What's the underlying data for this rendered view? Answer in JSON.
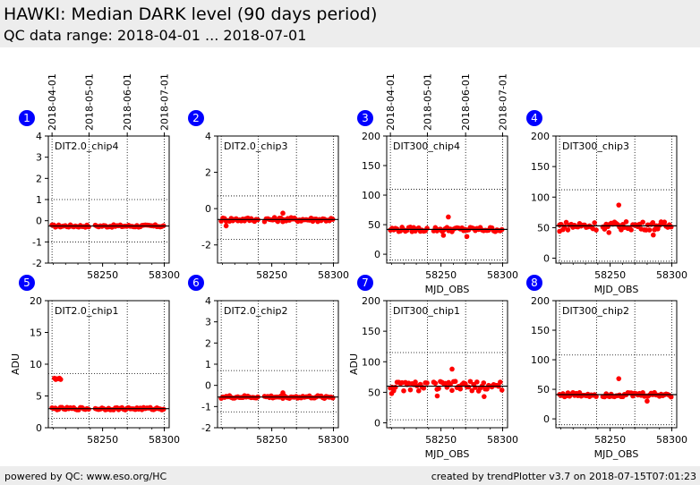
{
  "header": {
    "title": "HAWKI: Median DARK level (90 days period)",
    "subtitle": "QC data range: 2018-04-01 ... 2018-07-01"
  },
  "footer": {
    "left": "powered by QC: www.eso.org/HC",
    "right": "created by trendPlotter v3.7 on 2018-07-15T07:01:23"
  },
  "colors": {
    "points": "#ff0000",
    "reference_line": "#000000",
    "badge": "#0000ff",
    "header_bg": "#ededed"
  },
  "date_ticks": {
    "labels": [
      "2018-04-01",
      "2018-05-01",
      "2018-06-01",
      "2018-07-01"
    ],
    "mjd": [
      58209,
      58239,
      58270,
      58300
    ]
  },
  "chart_data": [
    {
      "type": "scatter",
      "badge": "1",
      "name": "DIT2.0_chip4",
      "xlim": [
        58206,
        58304
      ],
      "ylim": [
        -2,
        4
      ],
      "yticks": [
        -2,
        -1,
        0,
        1,
        2,
        3,
        4
      ],
      "xticks": [
        58250,
        58300
      ],
      "hlines": [
        -1,
        1
      ],
      "ref": -0.25,
      "xlabel": "",
      "ylabel": "",
      "show_date_axis": true,
      "base": -0.25,
      "noise": 0.06,
      "outliers": []
    },
    {
      "type": "scatter",
      "badge": "2",
      "name": "DIT2.0_chip3",
      "xlim": [
        58206,
        58304
      ],
      "ylim": [
        -3,
        4
      ],
      "yticks": [
        -2,
        0,
        2,
        4
      ],
      "xticks": [
        58250,
        58300
      ],
      "hlines": [
        -1.7,
        0.7
      ],
      "ref": -0.6,
      "xlabel": "",
      "ylabel": "",
      "show_date_axis": false,
      "base": -0.6,
      "noise": 0.12,
      "outliers": [
        [
          58213,
          -0.95
        ],
        [
          58259,
          -0.25
        ]
      ]
    },
    {
      "type": "scatter",
      "badge": "3",
      "name": "DIT300_chip4",
      "xlim": [
        58206,
        58304
      ],
      "ylim": [
        -15,
        200
      ],
      "yticks": [
        0,
        50,
        100,
        150,
        200
      ],
      "xticks": [
        58250,
        58300
      ],
      "hlines": [
        -10,
        110
      ],
      "ref": 42,
      "xlabel": "MJD_OBS",
      "ylabel": "",
      "show_date_axis": true,
      "base": 42,
      "noise": 4,
      "outliers": [
        [
          58256,
          63
        ],
        [
          58271,
          30
        ],
        [
          58252,
          32
        ]
      ]
    },
    {
      "type": "scatter",
      "badge": "4",
      "name": "DIT300_chip3",
      "xlim": [
        58206,
        58304
      ],
      "ylim": [
        -8,
        200
      ],
      "yticks": [
        0,
        50,
        100,
        150,
        200
      ],
      "xticks": [
        58250,
        58300
      ],
      "hlines": [
        -5,
        112
      ],
      "ref": 53,
      "xlabel": "MJD_OBS",
      "ylabel": "",
      "show_date_axis": false,
      "base": 53,
      "noise": 7,
      "outliers": [
        [
          58257,
          87
        ],
        [
          58249,
          42
        ],
        [
          58285,
          38
        ],
        [
          58209,
          44
        ]
      ]
    },
    {
      "type": "scatter",
      "badge": "5",
      "name": "DIT2.0_chip1",
      "xlim": [
        58206,
        58304
      ],
      "ylim": [
        0,
        20
      ],
      "yticks": [
        0,
        5,
        10,
        15,
        20
      ],
      "xticks": [
        58250,
        58300
      ],
      "hlines": [
        1.5,
        8.5
      ],
      "ref": 3.0,
      "xlabel": "",
      "ylabel": "ADU",
      "show_date_axis": false,
      "base": 3.0,
      "noise": 0.2,
      "outliers": [
        [
          58211,
          7.8
        ],
        [
          58212,
          7.6
        ],
        [
          58213,
          7.7
        ],
        [
          58214,
          7.7
        ],
        [
          58215,
          7.8
        ],
        [
          58216,
          7.6
        ]
      ]
    },
    {
      "type": "scatter",
      "badge": "6",
      "name": "DIT2.0_chip2",
      "xlim": [
        58206,
        58304
      ],
      "ylim": [
        -2,
        4
      ],
      "yticks": [
        -2,
        -1,
        0,
        1,
        2,
        3,
        4
      ],
      "xticks": [
        58250,
        58300
      ],
      "hlines": [
        -1.25,
        0.7
      ],
      "ref": -0.55,
      "xlabel": "",
      "ylabel": "",
      "show_date_axis": false,
      "base": -0.55,
      "noise": 0.07,
      "outliers": [
        [
          58259,
          -0.35
        ]
      ]
    },
    {
      "type": "scatter",
      "badge": "7",
      "name": "DIT300_chip1",
      "xlim": [
        58206,
        58304
      ],
      "ylim": [
        -8,
        200
      ],
      "yticks": [
        0,
        50,
        100,
        150,
        200
      ],
      "xticks": [
        58250,
        58300
      ],
      "hlines": [
        5,
        115
      ],
      "ref": 60,
      "xlabel": "MJD_OBS",
      "ylabel": "ADU",
      "show_date_axis": false,
      "base": 60,
      "noise": 8,
      "outliers": [
        [
          58259,
          88
        ],
        [
          58247,
          44
        ],
        [
          58285,
          43
        ],
        [
          58210,
          48
        ]
      ]
    },
    {
      "type": "scatter",
      "badge": "8",
      "name": "DIT300_chip2",
      "xlim": [
        58206,
        58304
      ],
      "ylim": [
        -15,
        200
      ],
      "yticks": [
        0,
        50,
        100,
        150,
        200
      ],
      "xticks": [
        58250,
        58300
      ],
      "hlines": [
        -10,
        108
      ],
      "ref": 41,
      "xlabel": "MJD_OBS",
      "ylabel": "",
      "show_date_axis": false,
      "base": 41,
      "noise": 4,
      "outliers": [
        [
          58257,
          68
        ],
        [
          58280,
          30
        ]
      ]
    }
  ]
}
